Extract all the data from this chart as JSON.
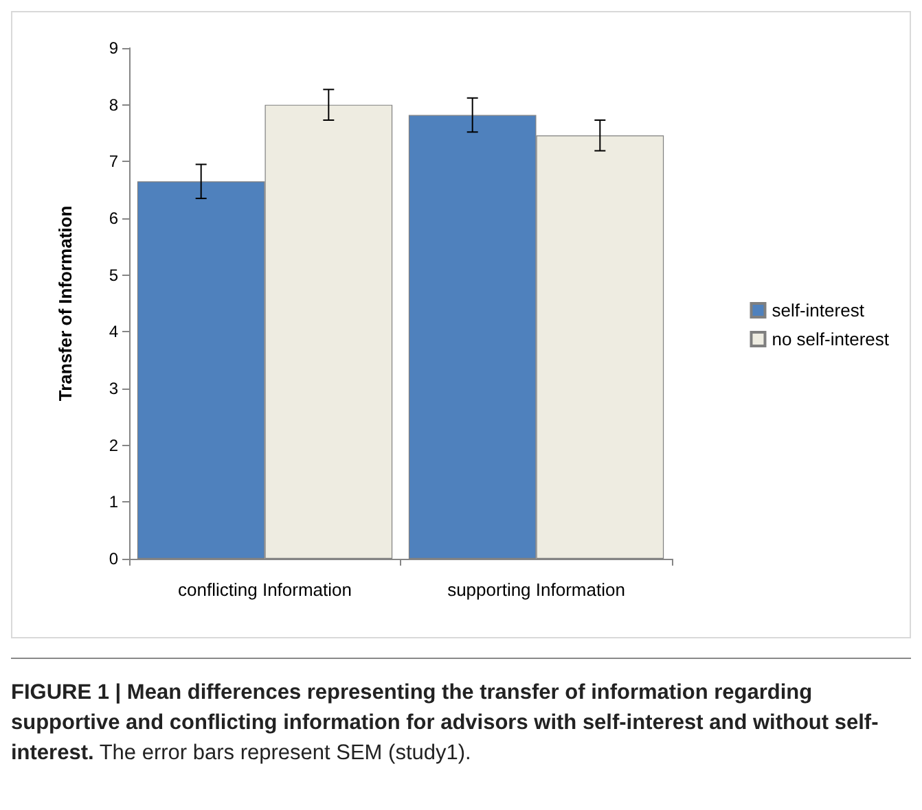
{
  "chart_data": {
    "type": "bar",
    "ylabel": "Transfer of Information",
    "categories": [
      "conflicting Information",
      "supporting Information"
    ],
    "series": [
      {
        "name": "self-interest",
        "color": "#4f81bd",
        "values": [
          6.65,
          7.82
        ],
        "errors": [
          0.3,
          0.3
        ]
      },
      {
        "name": "no self-interest",
        "color": "#eeece1",
        "values": [
          8.0,
          7.46
        ],
        "errors": [
          0.27,
          0.27
        ]
      }
    ],
    "ylim": [
      0,
      9
    ],
    "yticks": [
      0,
      1,
      2,
      3,
      4,
      5,
      6,
      7,
      8,
      9
    ],
    "grid": false,
    "legend": "right",
    "annotations": [
      "FIGURE 1 | Mean differences representing the transfer of information regarding supportive and conflicting information for advisors with self-interest and without self-interest.",
      "The error bars represent SEM (study1)."
    ]
  }
}
